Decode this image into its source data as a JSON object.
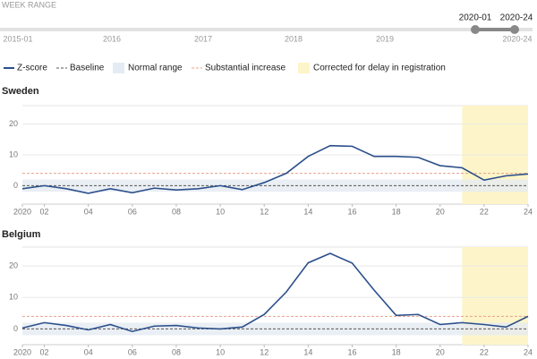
{
  "week_range": {
    "label": "WEEK RANGE",
    "start": "2020-01",
    "end": "2020-24",
    "ticks": [
      "2015-01",
      "2016",
      "2017",
      "2018",
      "2019",
      "2020-24"
    ]
  },
  "legend": {
    "baseline": "Baseline",
    "normal_range": "Normal range",
    "substantial_increase": "Substantial increase",
    "delay": "Corrected for delay in registration"
  },
  "chart_data": [
    {
      "type": "line",
      "title": "Sweden",
      "x": [
        1,
        2,
        3,
        4,
        5,
        6,
        7,
        8,
        9,
        10,
        11,
        12,
        13,
        14,
        15,
        16,
        17,
        18,
        19,
        20,
        21,
        22,
        23,
        24
      ],
      "series": [
        {
          "name": "Z-score",
          "color": "#2b4f8a",
          "values": [
            -1.0,
            0,
            -1,
            -2.5,
            -1,
            -2.3,
            -0.8,
            -1.4,
            -1,
            0,
            -1.3,
            1,
            4,
            9.5,
            13,
            12.8,
            9.5,
            9.5,
            9.2,
            6.5,
            5.8,
            1.8,
            3.2,
            3.8
          ]
        }
      ],
      "baseline": 0,
      "normal_range": [
        -2,
        2
      ],
      "substantial_increase": 4,
      "delay_from": 21,
      "xlim": [
        1,
        24
      ],
      "ylim": [
        -6,
        26
      ],
      "yticks": [
        0,
        10,
        20
      ],
      "xticks": [
        {
          "value": 1,
          "label": "2020"
        },
        {
          "value": 2,
          "label": "02"
        },
        {
          "value": 4,
          "label": "04"
        },
        {
          "value": 6,
          "label": "06"
        },
        {
          "value": 8,
          "label": "08"
        },
        10,
        12,
        14,
        16,
        18,
        20,
        22,
        24
      ],
      "grid": true
    },
    {
      "type": "line",
      "title": "Belgium",
      "x": [
        1,
        2,
        3,
        4,
        5,
        6,
        7,
        8,
        9,
        10,
        11,
        12,
        13,
        14,
        15,
        16,
        17,
        18,
        19,
        20,
        21,
        22,
        23,
        24
      ],
      "series": [
        {
          "name": "Z-score",
          "color": "#2b4f8a",
          "values": [
            0.3,
            2,
            1.1,
            -0.3,
            1.4,
            -0.8,
            0.9,
            1.1,
            0.3,
            0,
            0.6,
            4.6,
            11.7,
            21,
            24,
            20.9,
            12.3,
            4.3,
            4.6,
            1.4,
            2,
            1.4,
            0.6,
            4
          ]
        }
      ],
      "baseline": 0,
      "normal_range": [
        -2,
        2
      ],
      "substantial_increase": 4,
      "delay_from": 21,
      "xlim": [
        1,
        24
      ],
      "ylim": [
        -5,
        26
      ],
      "yticks": [
        0,
        10,
        20
      ],
      "xticks": [
        {
          "value": 1,
          "label": "2020"
        },
        {
          "value": 2,
          "label": "02"
        },
        {
          "value": 4,
          "label": "04"
        },
        {
          "value": 6,
          "label": "06"
        },
        {
          "value": 8,
          "label": "08"
        },
        10,
        12,
        14,
        16,
        18,
        20,
        22,
        24
      ],
      "grid": true
    }
  ]
}
